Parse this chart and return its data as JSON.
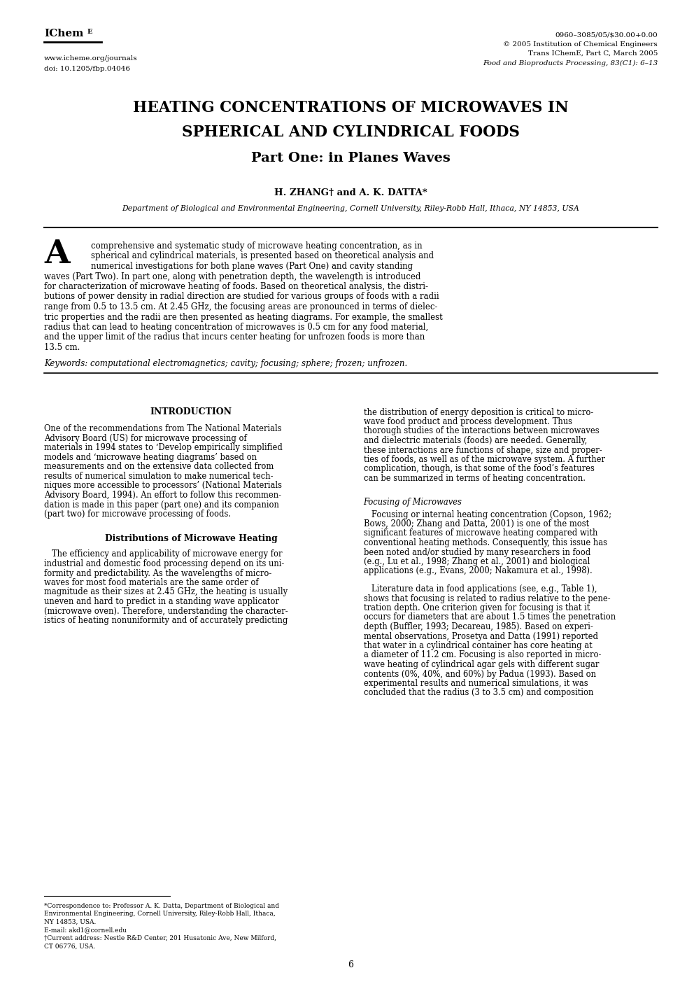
{
  "bg_color": "#ffffff",
  "header_left_url": "www.icheme.org/journals",
  "header_left_doi": "doi: 10.1205/fbp.04046",
  "header_right_line1": "0960–3085/05/$30.00+0.00",
  "header_right_line2": "© 2005 Institution of Chemical Engineers",
  "header_right_line3": "Trans IChemE, Part C, March 2005",
  "header_right_line4": "Food and Bioproducts Processing, 83(C1): 6–13",
  "title_line1": "HEATING CONCENTRATIONS OF MICROWAVES IN",
  "title_line2": "SPHERICAL AND CYLINDRICAL FOODS",
  "title_line3": "Part One: in Planes Waves",
  "authors": "H. ZHANG† and A. K. DATTA*",
  "affiliation": "Department of Biological and Environmental Engineering, Cornell University, Riley-Robb Hall, Ithaca, NY 14853, USA",
  "keywords": "Keywords: computational electromagnetics; cavity; focusing; sphere; frozen; unfrozen.",
  "intro_heading": "INTRODUCTION",
  "dist_heading": "Distributions of Microwave Heating",
  "focusing_heading": "Focusing of Microwaves",
  "page_number": "6",
  "abstract_dropcap": "A",
  "abstract_part1": [
    "    comprehensive and systematic study of microwave heating concentration, as in",
    "    spherical and cylindrical materials, is presented based on theoretical analysis and",
    "    numerical investigations for both plane waves (Part One) and cavity standing"
  ],
  "abstract_part2": [
    "waves (Part Two). In part one, along with penetration depth, the wavelength is introduced",
    "for characterization of microwave heating of foods. Based on theoretical analysis, the distri-",
    "butions of power density in radial direction are studied for various groups of foods with a radii",
    "range from 0.5 to 13.5 cm. At 2.45 GHz, the focusing areas are pronounced in terms of dielec-",
    "tric properties and the radii are then presented as heating diagrams. For example, the smallest",
    "radius that can lead to heating concentration of microwaves is 0.5 cm for any food material,",
    "and the upper limit of the radius that incurs center heating for unfrozen foods is more than",
    "13.5 cm."
  ],
  "intro_lines": [
    "One of the recommendations from The National Materials",
    "Advisory Board (US) for microwave processing of",
    "materials in 1994 states to ‘Develop empirically simplified",
    "models and ‘microwave heating diagrams’ based on",
    "measurements and on the extensive data collected from",
    "results of numerical simulation to make numerical tech-",
    "niques more accessible to processors’ (National Materials",
    "Advisory Board, 1994). An effort to follow this recommen-",
    "dation is made in this paper (part one) and its companion",
    "(part two) for microwave processing of foods."
  ],
  "dist_lines": [
    "   The efficiency and applicability of microwave energy for",
    "industrial and domestic food processing depend on its uni-",
    "formity and predictability. As the wavelengths of micro-",
    "waves for most food materials are the same order of",
    "magnitude as their sizes at 2.45 GHz, the heating is usually",
    "uneven and hard to predict in a standing wave applicator",
    "(microwave oven). Therefore, understanding the character-",
    "istics of heating nonuniformity and of accurately predicting"
  ],
  "right_intro_lines": [
    "the distribution of energy deposition is critical to micro-",
    "wave food product and process development. Thus",
    "thorough studies of the interactions between microwaves",
    "and dielectric materials (foods) are needed. Generally,",
    "these interactions are functions of shape, size and proper-",
    "ties of foods, as well as of the microwave system. A further",
    "complication, though, is that some of the food’s features",
    "can be summarized in terms of heating concentration."
  ],
  "focus_lines": [
    "   Focusing or internal heating concentration (Copson, 1962;",
    "Bows, 2000; Zhang and Datta, 2001) is one of the most",
    "significant features of microwave heating compared with",
    "conventional heating methods. Consequently, this issue has",
    "been noted and/or studied by many researchers in food",
    "(e.g., Lu et al., 1998; Zhang et al., 2001) and biological",
    "applications (e.g., Evans, 2000; Nakamura et al., 1998)."
  ],
  "lit_lines": [
    "   Literature data in food applications (see, e.g., Table 1),",
    "shows that focusing is related to radius relative to the pene-",
    "tration depth. One criterion given for focusing is that it",
    "occurs for diameters that are about 1.5 times the penetration",
    "depth (Buffler, 1993; Decareau, 1985). Based on experi-",
    "mental observations, Prosetya and Datta (1991) reported",
    "that water in a cylindrical container has core heating at",
    "a diameter of 11.2 cm. Focusing is also reported in micro-",
    "wave heating of cylindrical agar gels with different sugar",
    "contents (0%, 40%, and 60%) by Padua (1993). Based on",
    "experimental results and numerical simulations, it was",
    "concluded that the radius (3 to 3.5 cm) and composition"
  ],
  "fn_lines": [
    "*Correspondence to: Professor A. K. Datta, Department of Biological and",
    "Environmental Engineering, Cornell University, Riley-Robb Hall, Ithaca,",
    "NY 14853, USA.",
    "E-mail: akd1@cornell.edu",
    "†Current address: Nestle R&D Center, 201 Husatonic Ave, New Milford,",
    "CT 06776, USA."
  ]
}
